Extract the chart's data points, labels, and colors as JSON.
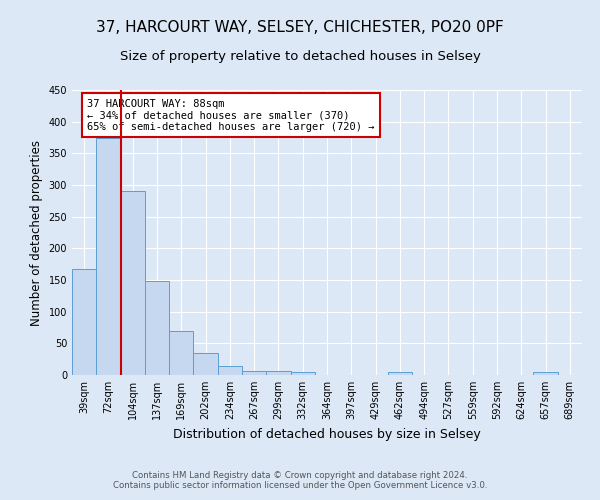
{
  "title1": "37, HARCOURT WAY, SELSEY, CHICHESTER, PO20 0PF",
  "title2": "Size of property relative to detached houses in Selsey",
  "xlabel": "Distribution of detached houses by size in Selsey",
  "ylabel": "Number of detached properties",
  "categories": [
    "39sqm",
    "72sqm",
    "104sqm",
    "137sqm",
    "169sqm",
    "202sqm",
    "234sqm",
    "267sqm",
    "299sqm",
    "332sqm",
    "364sqm",
    "397sqm",
    "429sqm",
    "462sqm",
    "494sqm",
    "527sqm",
    "559sqm",
    "592sqm",
    "624sqm",
    "657sqm",
    "689sqm"
  ],
  "values": [
    167,
    375,
    290,
    149,
    70,
    35,
    15,
    7,
    6,
    4,
    0,
    0,
    0,
    4,
    0,
    0,
    0,
    0,
    0,
    4,
    0
  ],
  "bar_color": "#c5d8f0",
  "bar_edge_color": "#5a9fd4",
  "red_line_x": 1.5,
  "annotation_title": "37 HARCOURT WAY: 88sqm",
  "annotation_line1": "← 34% of detached houses are smaller (370)",
  "annotation_line2": "65% of semi-detached houses are larger (720) →",
  "annotation_box_color": "#ffffff",
  "annotation_box_edge": "#cc0000",
  "footer": "Contains HM Land Registry data © Crown copyright and database right 2024.\nContains public sector information licensed under the Open Government Licence v3.0.",
  "ylim": [
    0,
    450
  ],
  "background_color": "#dce8f5",
  "grid_color": "#ffffff",
  "title1_fontsize": 11,
  "title2_fontsize": 9.5
}
